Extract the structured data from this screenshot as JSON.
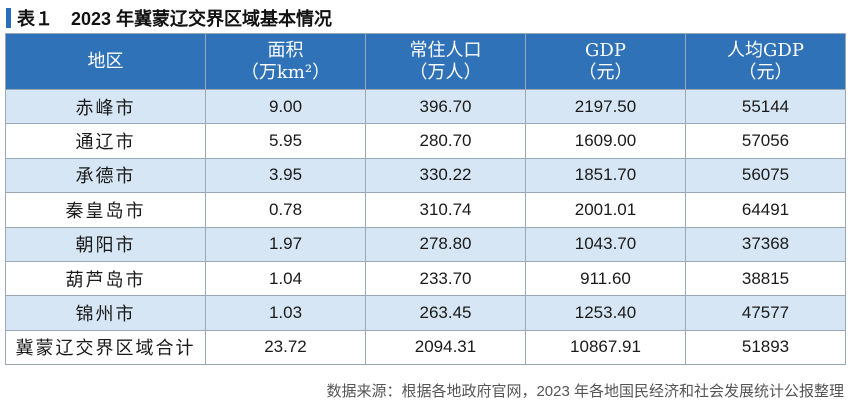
{
  "title": {
    "label": "表１",
    "text": "2023 年冀蒙辽交界区域基本情况"
  },
  "headers": [
    {
      "line1": "地区",
      "line2": ""
    },
    {
      "line1": "面积",
      "line2": "（万km²）"
    },
    {
      "line1": "常住人口",
      "line2": "（万人）"
    },
    {
      "line1": "GDP",
      "line2": "（元）"
    },
    {
      "line1": "人均GDP",
      "line2": "（元）"
    }
  ],
  "rows": [
    [
      "赤峰市",
      "9.00",
      "396.70",
      "2197.50",
      "55144"
    ],
    [
      "通辽市",
      "5.95",
      "280.70",
      "1609.00",
      "57056"
    ],
    [
      "承德市",
      "3.95",
      "330.22",
      "1851.70",
      "56075"
    ],
    [
      "秦皇岛市",
      "0.78",
      "310.74",
      "2001.01",
      "64491"
    ],
    [
      "朝阳市",
      "1.97",
      "278.80",
      "1043.70",
      "37368"
    ],
    [
      "葫芦岛市",
      "1.04",
      "233.70",
      "911.60",
      "38815"
    ],
    [
      "锦州市",
      "1.03",
      "263.45",
      "1253.40",
      "47577"
    ],
    [
      "冀蒙辽交界区域合计",
      "23.72",
      "2094.31",
      "10867.91",
      "51893"
    ]
  ],
  "source": "数据来源：根据各地政府官网，2023 年各地国民经济和社会发展统计公报整理",
  "colors": {
    "header_bg": "#2f72b7",
    "stripe": "#d6e6f4",
    "accent": "#2a6fb6"
  }
}
